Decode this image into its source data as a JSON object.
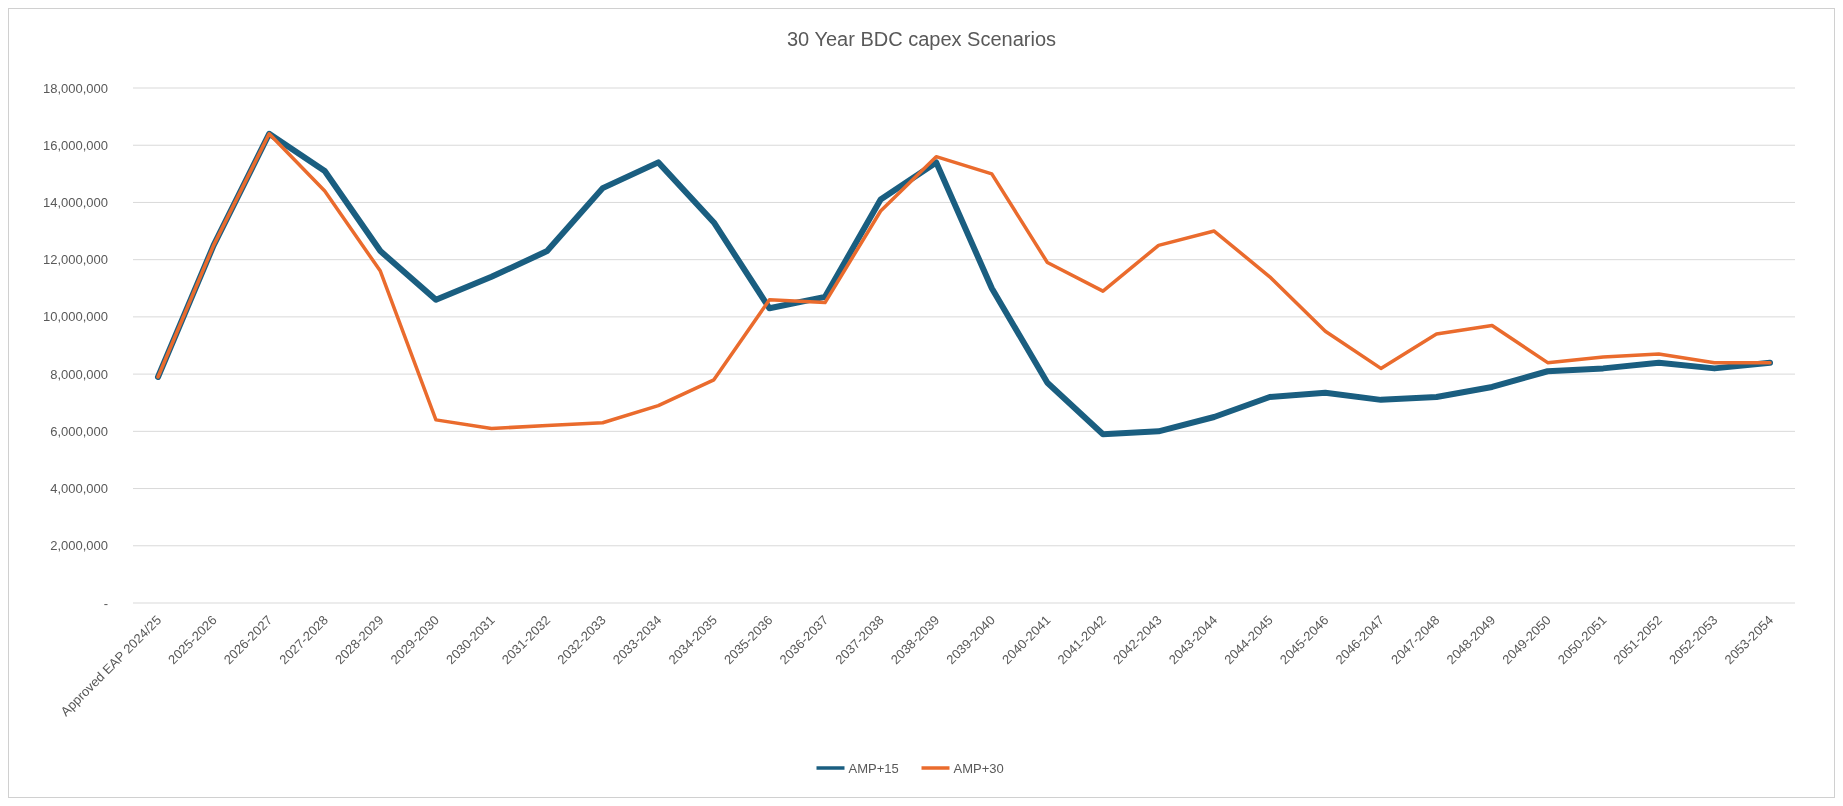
{
  "chart_data": {
    "type": "line",
    "title": "30 Year BDC capex Scenarios",
    "categories": [
      "Approved EAP 2024/25",
      "2025-2026",
      "2026-2027",
      "2027-2028",
      "2028-2029",
      "2029-2030",
      "2030-2031",
      "2031-2032",
      "2032-2033",
      "2033-2034",
      "2034-2035",
      "2035-2036",
      "2036-2037",
      "2037-2038",
      "2038-2039",
      "2039-2040",
      "2040-2041",
      "2041-2042",
      "2042-2043",
      "2043-2044",
      "2044-2045",
      "2045-2046",
      "2046-2047",
      "2047-2048",
      "2048-2049",
      "2049-2050",
      "2050-2051",
      "2051-2052",
      "2052-2053",
      "2053-2054"
    ],
    "series": [
      {
        "name": "AMP+15",
        "color": "#1a5e80",
        "values": [
          7900000,
          12500000,
          16400000,
          15100000,
          12300000,
          10600000,
          11400000,
          12300000,
          14500000,
          15400000,
          13300000,
          10300000,
          10700000,
          14100000,
          15400000,
          11000000,
          7700000,
          5900000,
          6000000,
          6500000,
          7200000,
          7350000,
          7100000,
          7200000,
          7550000,
          8100000,
          8200000,
          8400000,
          8200000,
          8400000
        ]
      },
      {
        "name": "AMP+30",
        "color": "#ea6b2d",
        "values": [
          7900000,
          12500000,
          16400000,
          14400000,
          11600000,
          6400000,
          6100000,
          6200000,
          6300000,
          6900000,
          7800000,
          10600000,
          10500000,
          13700000,
          15600000,
          15000000,
          11900000,
          10900000,
          12500000,
          13000000,
          11400000,
          9500000,
          8200000,
          9400000,
          9700000,
          8400000,
          8600000,
          8700000,
          8400000,
          8400000
        ]
      }
    ],
    "ylim": [
      0,
      18000000
    ],
    "yticks": [
      {
        "value": 0,
        "label": "-"
      },
      {
        "value": 2000000,
        "label": "2,000,000"
      },
      {
        "value": 4000000,
        "label": "4,000,000"
      },
      {
        "value": 6000000,
        "label": "6,000,000"
      },
      {
        "value": 8000000,
        "label": "8,000,000"
      },
      {
        "value": 10000000,
        "label": "10,000,000"
      },
      {
        "value": 12000000,
        "label": "12,000,000"
      },
      {
        "value": 14000000,
        "label": "14,000,000"
      },
      {
        "value": 16000000,
        "label": "16,000,000"
      },
      {
        "value": 18000000,
        "label": "18,000,000"
      }
    ],
    "grid": "y",
    "legend": "bottom",
    "marker": "none",
    "line_style": "solid"
  }
}
